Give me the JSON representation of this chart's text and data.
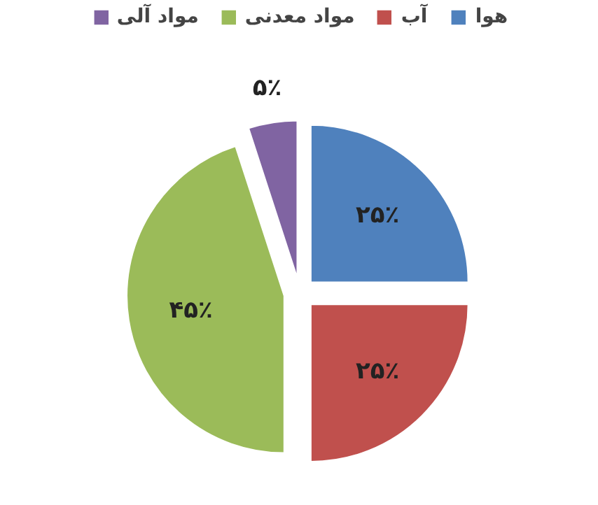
{
  "chart_data": {
    "type": "pie",
    "categories": [
      "هوا",
      "آب",
      "مواد معدنی",
      "مواد آلی"
    ],
    "values": [
      25,
      25,
      45,
      5
    ],
    "colors": [
      "#4f81bd",
      "#c0504d",
      "#9bbb59",
      "#8064a2"
    ],
    "value_labels": [
      "۲۵٪",
      "۲۵٪",
      "۴۵٪",
      "۵٪"
    ],
    "legend": "top"
  }
}
